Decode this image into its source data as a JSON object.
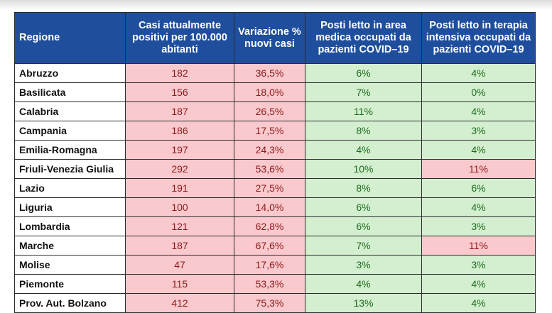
{
  "headers": {
    "region": "Regione",
    "positives": "Casi attualmente positivi per 100.000 abitanti",
    "variation": "Variazione % nuovi casi",
    "medical": "Posti letto in area medica occupati da pazienti COVID–19",
    "icu": "Posti letto in terapia intensiva occupati da pazienti COVID–19"
  },
  "status_colors": {
    "red_bg": "#f9c9cd",
    "red_text": "#8b1a1a",
    "green_bg": "#d3efcf",
    "green_text": "#1f6b1f",
    "header_bg": "#1f4e9c"
  },
  "rows": [
    {
      "region": "Abruzzo",
      "positives": "182",
      "variation": "36,5%",
      "medical": "6%",
      "medical_status": "green",
      "icu": "4%",
      "icu_status": "green"
    },
    {
      "region": "Basilicata",
      "positives": "156",
      "variation": "18,0%",
      "medical": "7%",
      "medical_status": "green",
      "icu": "0%",
      "icu_status": "green"
    },
    {
      "region": "Calabria",
      "positives": "187",
      "variation": "26,5%",
      "medical": "11%",
      "medical_status": "green",
      "icu": "4%",
      "icu_status": "green"
    },
    {
      "region": "Campania",
      "positives": "186",
      "variation": "17,5%",
      "medical": "8%",
      "medical_status": "green",
      "icu": "3%",
      "icu_status": "green"
    },
    {
      "region": "Emilia-Romagna",
      "positives": "197",
      "variation": "24,3%",
      "medical": "4%",
      "medical_status": "green",
      "icu": "4%",
      "icu_status": "green"
    },
    {
      "region": "Friuli-Venezia Giulia",
      "positives": "292",
      "variation": "53,6%",
      "medical": "10%",
      "medical_status": "green",
      "icu": "11%",
      "icu_status": "red"
    },
    {
      "region": "Lazio",
      "positives": "191",
      "variation": "27,5%",
      "medical": "8%",
      "medical_status": "green",
      "icu": "6%",
      "icu_status": "green"
    },
    {
      "region": "Liguria",
      "positives": "100",
      "variation": "14,0%",
      "medical": "6%",
      "medical_status": "green",
      "icu": "4%",
      "icu_status": "green"
    },
    {
      "region": "Lombardia",
      "positives": "121",
      "variation": "62,8%",
      "medical": "6%",
      "medical_status": "green",
      "icu": "3%",
      "icu_status": "green"
    },
    {
      "region": "Marche",
      "positives": "187",
      "variation": "67,6%",
      "medical": "7%",
      "medical_status": "green",
      "icu": "11%",
      "icu_status": "red"
    },
    {
      "region": "Molise",
      "positives": "47",
      "variation": "17,6%",
      "medical": "3%",
      "medical_status": "green",
      "icu": "3%",
      "icu_status": "green"
    },
    {
      "region": "Piemonte",
      "positives": "115",
      "variation": "53,3%",
      "medical": "4%",
      "medical_status": "green",
      "icu": "4%",
      "icu_status": "green"
    },
    {
      "region": "Prov. Aut. Bolzano",
      "positives": "412",
      "variation": "75,3%",
      "medical": "13%",
      "medical_status": "green",
      "icu": "4%",
      "icu_status": "green"
    }
  ]
}
